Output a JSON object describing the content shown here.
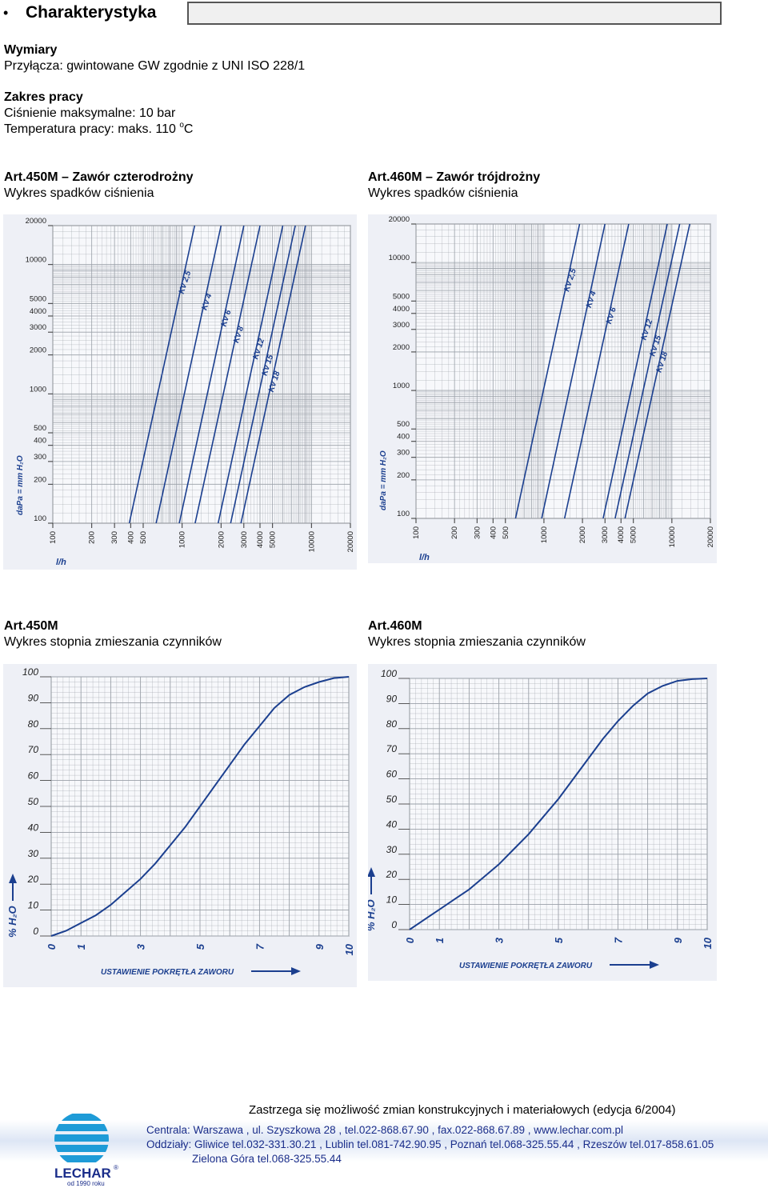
{
  "header": {
    "bullet": "•",
    "title": "Charakterystyka"
  },
  "specs": {
    "dims_heading": "Wymiary",
    "dims_text": "Przyłącza: gwintowane GW zgodnie z UNI ISO 228/1",
    "range_heading": "Zakres pracy",
    "pressure_text": "Ciśnienie maksymalne: 10 bar",
    "temp_text": "Temperatura pracy: maks. 110",
    "temp_sup": "o",
    "temp_unit": "C"
  },
  "sections": {
    "pressure_left_heading": "Art.450M – Zawór czterodrożny",
    "pressure_left_sub": "Wykres spadków ciśnienia",
    "pressure_right_heading": "Art.460M – Zawór trójdrożny",
    "pressure_right_sub": "Wykres spadków ciśnienia",
    "mix_left_heading": "Art.450M",
    "mix_left_sub": "Wykres stopnia zmieszania czynników",
    "mix_right_heading": "Art.460M",
    "mix_right_sub": "Wykres stopnia zmieszania czynników"
  },
  "chart_data": [
    {
      "type": "line",
      "id": "pressure-450",
      "scale": "log-log",
      "xlabel": "l/h",
      "ylabel": "daPa = mm H₂O",
      "xlim": [
        100,
        20000
      ],
      "ylim": [
        100,
        20000
      ],
      "x_ticks": [
        100,
        200,
        300,
        400,
        500,
        1000,
        2000,
        3000,
        4000,
        5000,
        10000,
        20000
      ],
      "y_ticks": [
        100,
        200,
        300,
        400,
        500,
        1000,
        2000,
        3000,
        4000,
        5000,
        10000,
        20000
      ],
      "series": [
        {
          "name": "Kv 2,5",
          "x": [
            390,
            1250
          ],
          "y": [
            100,
            20000
          ]
        },
        {
          "name": "Kv 4",
          "x": [
            630,
            2000
          ],
          "y": [
            100,
            20000
          ]
        },
        {
          "name": "Kv 6",
          "x": [
            950,
            3000
          ],
          "y": [
            100,
            20000
          ]
        },
        {
          "name": "Kv 8",
          "x": [
            1260,
            4000
          ],
          "y": [
            100,
            20000
          ]
        },
        {
          "name": "Kv 12",
          "x": [
            1900,
            6000
          ],
          "y": [
            100,
            20000
          ]
        },
        {
          "name": "Kv 15",
          "x": [
            2370,
            7500
          ],
          "y": [
            100,
            20000
          ]
        },
        {
          "name": "Kv 18",
          "x": [
            2850,
            9000
          ],
          "y": [
            100,
            20000
          ]
        }
      ]
    },
    {
      "type": "line",
      "id": "pressure-460",
      "scale": "log-log",
      "xlabel": "l/h",
      "ylabel": "daPa = mm H₂O",
      "xlim": [
        100,
        20000
      ],
      "ylim": [
        100,
        20000
      ],
      "x_ticks": [
        100,
        200,
        300,
        400,
        500,
        1000,
        2000,
        3000,
        4000,
        5000,
        10000,
        20000
      ],
      "y_ticks": [
        100,
        200,
        300,
        400,
        500,
        1000,
        2000,
        3000,
        4000,
        5000,
        10000,
        20000
      ],
      "series": [
        {
          "name": "Kv 2,5",
          "x": [
            600,
            1900
          ],
          "y": [
            100,
            20000
          ]
        },
        {
          "name": "Kv 4",
          "x": [
            960,
            3000
          ],
          "y": [
            100,
            20000
          ]
        },
        {
          "name": "Kv 6",
          "x": [
            1450,
            4600
          ],
          "y": [
            100,
            20000
          ]
        },
        {
          "name": "Kv 12",
          "x": [
            2900,
            9200
          ],
          "y": [
            100,
            20000
          ]
        },
        {
          "name": "Kv 15",
          "x": [
            3600,
            11500
          ],
          "y": [
            100,
            20000
          ]
        },
        {
          "name": "Kv 18",
          "x": [
            4300,
            13800
          ],
          "y": [
            100,
            20000
          ]
        }
      ]
    },
    {
      "type": "line",
      "id": "mix-450",
      "xlabel": "USTAWIENIE POKRĘTŁA ZAWORU",
      "ylabel": "% H₂O",
      "xlim": [
        0,
        10
      ],
      "ylim": [
        0,
        100
      ],
      "x_ticks": [
        0,
        1,
        3,
        5,
        7,
        9,
        10
      ],
      "y_ticks": [
        0,
        10,
        20,
        30,
        40,
        50,
        60,
        70,
        80,
        90,
        100
      ],
      "series": [
        {
          "name": "",
          "x": [
            0,
            0.5,
            1,
            1.5,
            2,
            2.5,
            3,
            3.5,
            4,
            4.5,
            5,
            5.5,
            6,
            6.5,
            7,
            7.5,
            8,
            8.5,
            9,
            9.5,
            10
          ],
          "y": [
            0,
            2,
            5,
            8,
            12,
            17,
            22,
            28,
            35,
            42,
            50,
            58,
            66,
            74,
            81,
            88,
            93,
            96,
            98,
            99.5,
            100
          ]
        }
      ]
    },
    {
      "type": "line",
      "id": "mix-460",
      "xlabel": "USTAWIENIE POKRĘTŁA ZAWORU",
      "ylabel": "% H₂O",
      "xlim": [
        0,
        10
      ],
      "ylim": [
        0,
        100
      ],
      "x_ticks": [
        0,
        1,
        3,
        5,
        7,
        9,
        10
      ],
      "y_ticks": [
        0,
        10,
        20,
        30,
        40,
        50,
        60,
        70,
        80,
        90,
        100
      ],
      "series": [
        {
          "name": "",
          "x": [
            0,
            0.5,
            1,
            1.5,
            2,
            2.5,
            3,
            3.5,
            4,
            4.5,
            5,
            5.5,
            6,
            6.5,
            7,
            7.5,
            8,
            8.5,
            9,
            9.5,
            10
          ],
          "y": [
            0,
            4,
            8,
            12,
            16,
            21,
            26,
            32,
            38,
            45,
            52,
            60,
            68,
            76,
            83,
            89,
            94,
            97,
            99,
            99.7,
            100
          ]
        }
      ]
    }
  ],
  "footer": {
    "note": "Zastrzega się możliwość zmian konstrukcyjnych i materiałowych (edycja 6/2004)",
    "line1": "Centrala: Warszawa , ul. Szyszkowa 28 , tel.022-868.67.90 , fax.022-868.67.89 , www.lechar.com.pl",
    "line2": "Oddziały: Gliwice tel.032-331.30.21 , Lublin tel.081-742.90.95 , Poznań tel.068-325.55.44 , Rzeszów tel.017-858.61.05",
    "line3": "Zielona Góra tel.068-325.55.44",
    "logo_text": "LECHAR",
    "logo_reg": "®",
    "logo_since": "od 1990 roku"
  },
  "colors": {
    "curve": "#1b3f8f",
    "grid": "#9aa0a8",
    "chart_bg": "#eef0f6",
    "logo_blue": "#1e9bd7",
    "footer_text": "#1a2d8a"
  }
}
